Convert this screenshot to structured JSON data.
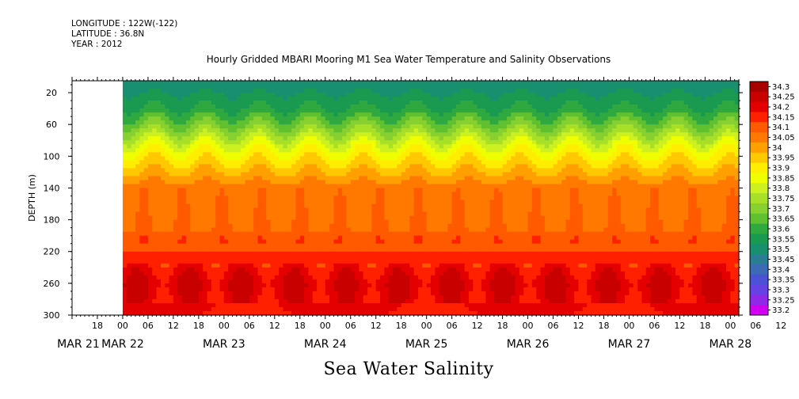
{
  "header": {
    "longitude": "LONGITUDE : 122W(-122)",
    "latitude": "LATITUDE : 36.8N",
    "year": "YEAR : 2012"
  },
  "chart_data": {
    "type": "heatmap",
    "title": "Hourly Gridded MBARI Mooring M1 Sea Water Temperature and Salinity Observations",
    "variable_title": "Sea Water Salinity",
    "ylabel": "DEPTH (m)",
    "ylim": [
      300,
      5
    ],
    "y_ticks": [
      20,
      60,
      100,
      140,
      180,
      220,
      260,
      300
    ],
    "x_hour_ticks": [
      "18",
      "00",
      "06",
      "12",
      "18",
      "00",
      "06",
      "12",
      "18",
      "00",
      "06",
      "12",
      "18",
      "00",
      "06",
      "12",
      "18",
      "00",
      "06",
      "12",
      "18",
      "00",
      "06",
      "12",
      "18",
      "00",
      "06",
      "12",
      "18",
      "00",
      "06",
      "12"
    ],
    "x_day_labels": [
      "MAR 21",
      "MAR 22",
      "MAR 23",
      "MAR 24",
      "MAR 25",
      "MAR 26",
      "MAR 27",
      "MAR 28"
    ],
    "x_range_hours_from_mar21_00": [
      12,
      170
    ],
    "data_start": "MAR 22 00",
    "colorbar": {
      "levels": [
        34.3,
        34.25,
        34.2,
        34.15,
        34.1,
        34.05,
        34,
        33.95,
        33.9,
        33.85,
        33.8,
        33.75,
        33.7,
        33.65,
        33.6,
        33.55,
        33.5,
        33.45,
        33.4,
        33.35,
        33.3,
        33.25,
        33.2
      ],
      "colors": [
        "#a80000",
        "#c80000",
        "#e40000",
        "#ff2000",
        "#ff5a00",
        "#ff7800",
        "#ffa000",
        "#ffc800",
        "#ffee00",
        "#f0ff00",
        "#ccf020",
        "#a8e028",
        "#88d030",
        "#60c030",
        "#30a840",
        "#1a9a50",
        "#189070",
        "#2a7e94",
        "#3c6ab4",
        "#4c52d4",
        "#6642e4",
        "#9028e8",
        "#d000f0"
      ]
    },
    "depth_profile_typical": [
      {
        "depth": 5,
        "salinity": 33.5
      },
      {
        "depth": 20,
        "salinity": 33.55
      },
      {
        "depth": 40,
        "salinity": 33.6
      },
      {
        "depth": 60,
        "salinity": 33.7
      },
      {
        "depth": 80,
        "salinity": 33.82
      },
      {
        "depth": 100,
        "salinity": 33.92
      },
      {
        "depth": 120,
        "salinity": 34.0
      },
      {
        "depth": 140,
        "salinity": 34.08
      },
      {
        "depth": 180,
        "salinity": 34.1
      },
      {
        "depth": 220,
        "salinity": 34.15
      },
      {
        "depth": 260,
        "salinity": 34.25
      },
      {
        "depth": 300,
        "salinity": 34.2
      }
    ],
    "grid": false
  }
}
